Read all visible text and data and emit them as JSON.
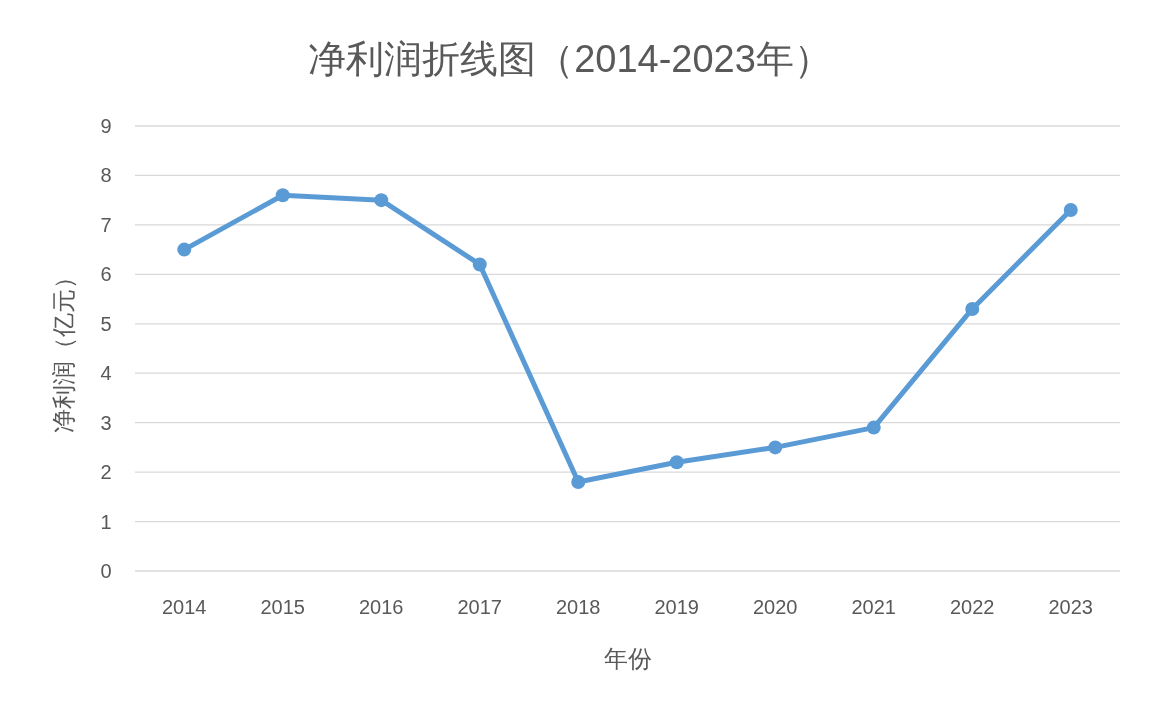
{
  "chart_data": {
    "type": "line",
    "title": "净利润折线图（2014-2023年）",
    "xlabel": "年份",
    "ylabel": "净利润（亿元）",
    "categories": [
      "2014",
      "2015",
      "2016",
      "2017",
      "2018",
      "2019",
      "2020",
      "2021",
      "2022",
      "2023"
    ],
    "series": [
      {
        "color": "#5b9bd5",
        "values": [
          6.5,
          7.6,
          7.5,
          6.2,
          1.8,
          2.2,
          2.5,
          2.9,
          5.3,
          7.3
        ]
      }
    ],
    "ylim": [
      0,
      9
    ],
    "yticks": [
      0,
      1,
      2,
      3,
      4,
      5,
      6,
      7,
      8,
      9
    ],
    "grid": "y",
    "marker": "circle",
    "line_style": "solid"
  }
}
